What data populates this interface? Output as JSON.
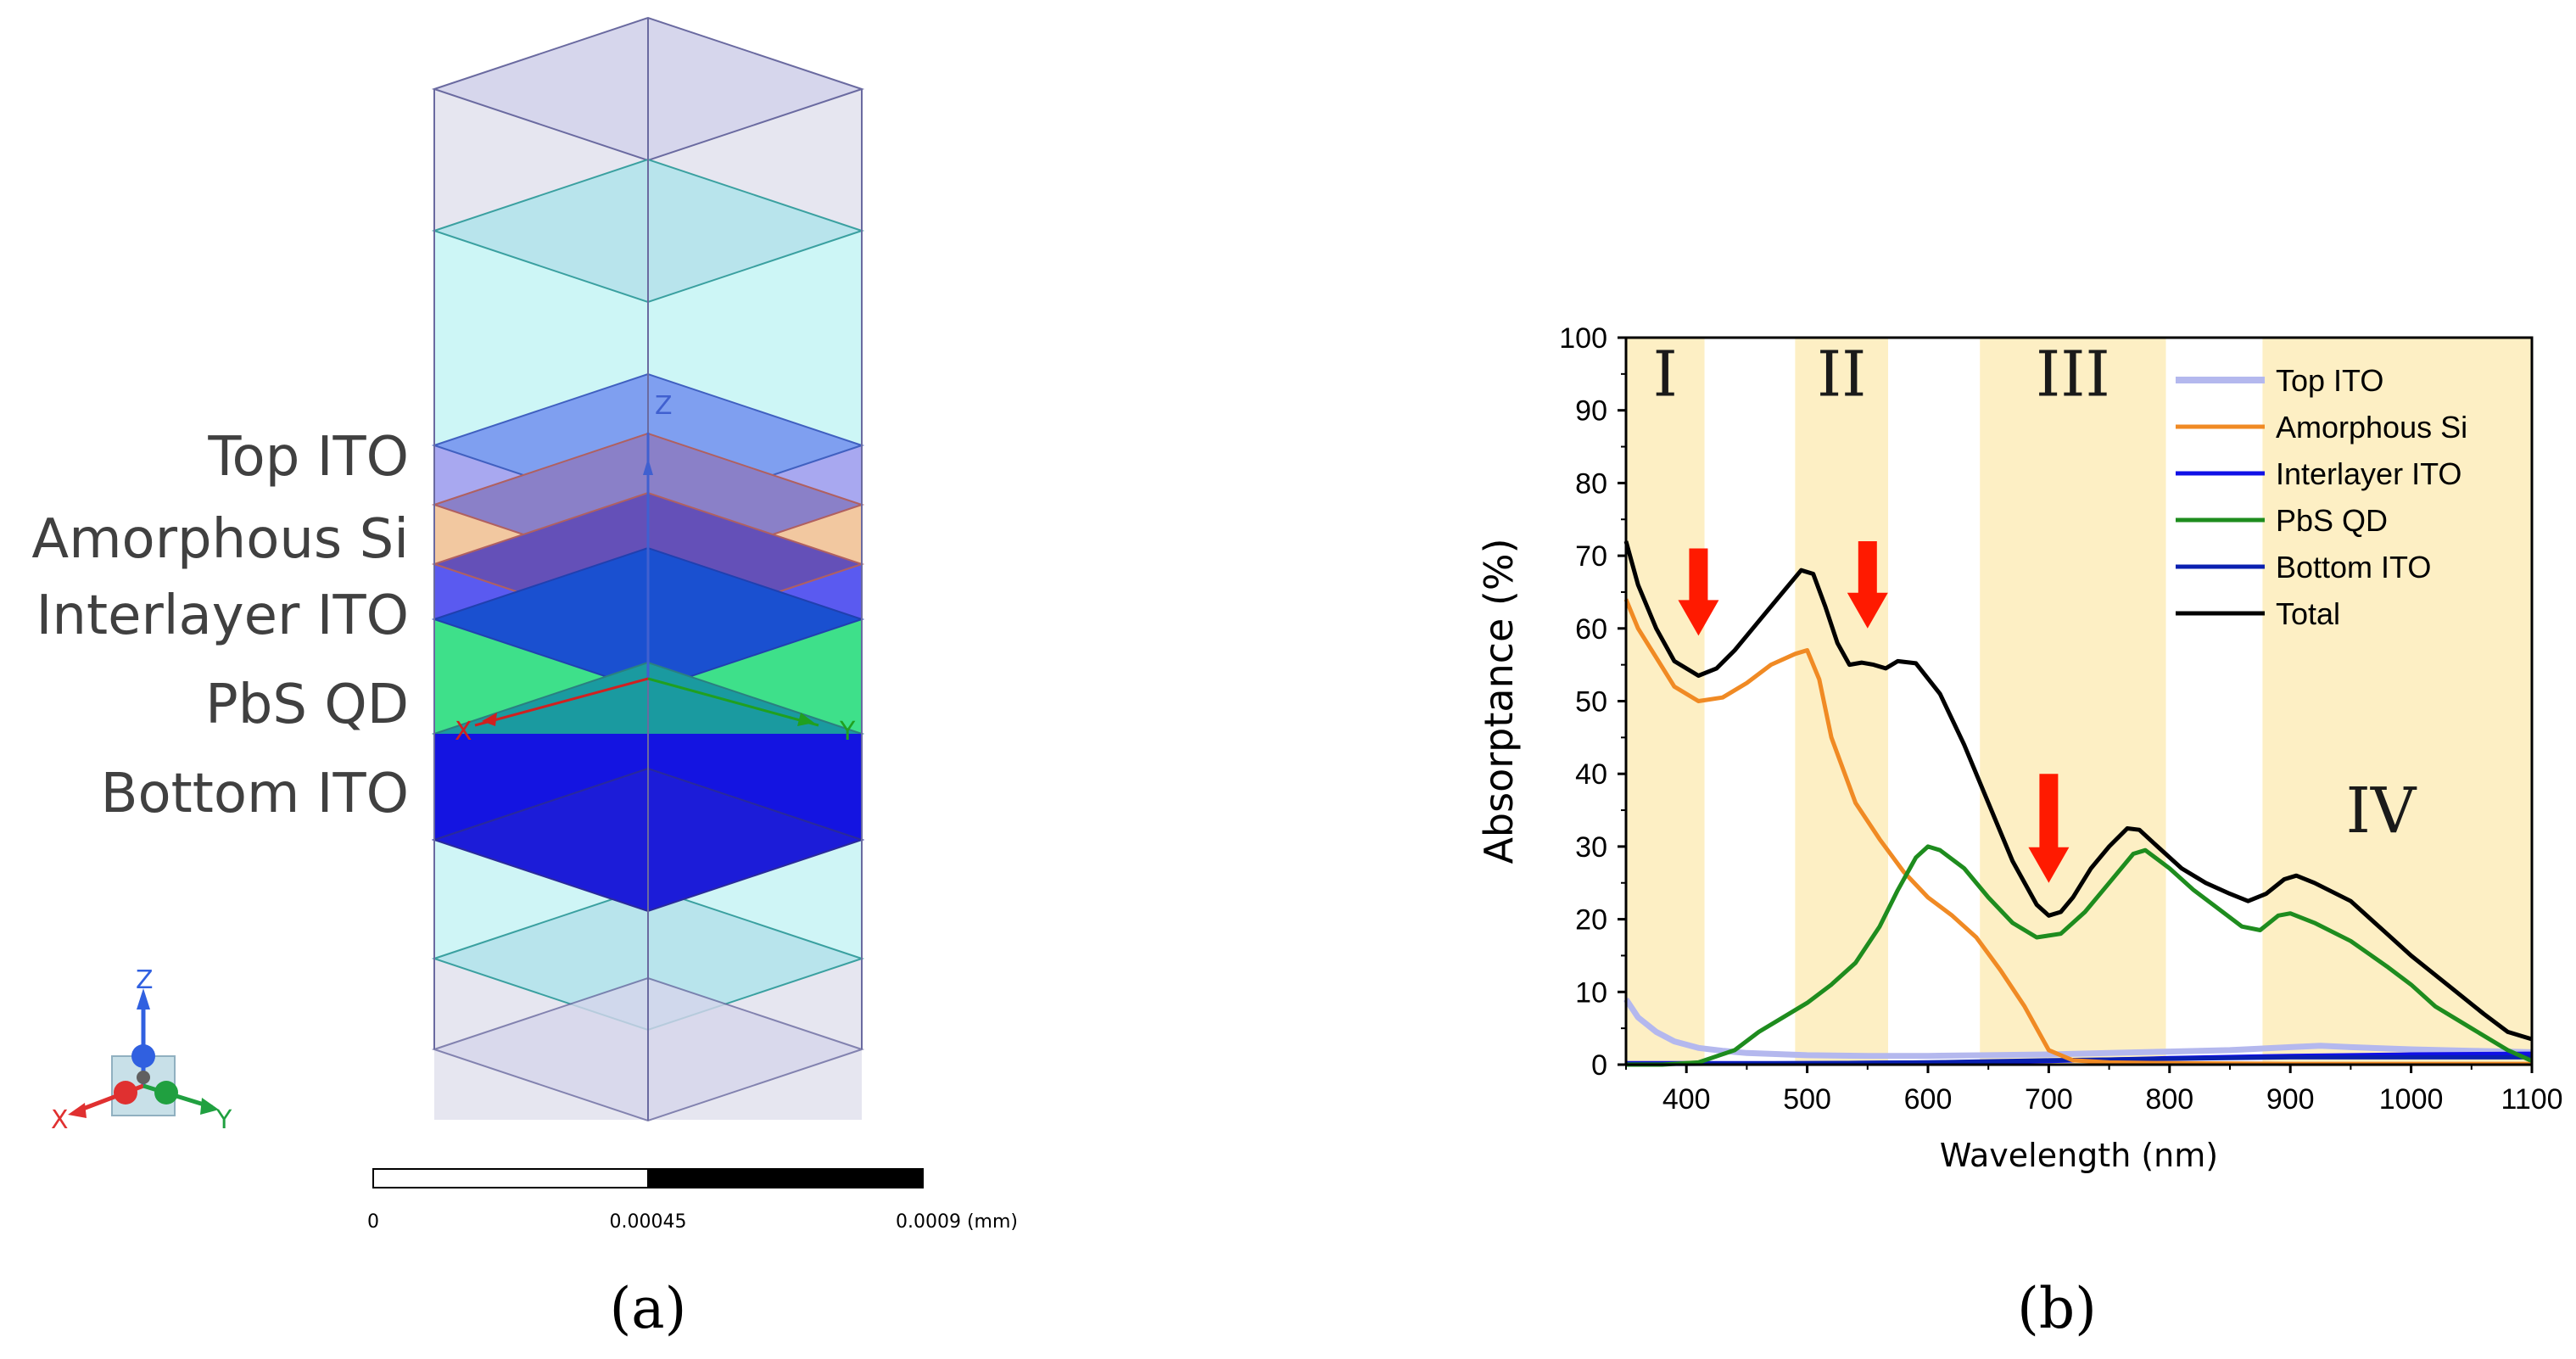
{
  "panel_a": {
    "caption": "(a)",
    "layer_labels": [
      "Top ITO",
      "Amorphous Si",
      "Interlayer ITO",
      "PbS QD",
      "Bottom ITO"
    ],
    "axis_labels": {
      "x": "X",
      "y": "Y",
      "z": "Z"
    },
    "scale_bar": {
      "ticks": [
        "0",
        "0.00045",
        "0.0009 (mm)"
      ]
    },
    "colors": {
      "top_ito": "#a8a8f0",
      "amorphous_si": "#f2c8a0",
      "interlayer_ito": "#5a5af0",
      "pbs_qd": "#3ee08a",
      "bottom_ito": "#1a1ae0",
      "glass": "#cdf6f6",
      "air": "#e6e6f0"
    }
  },
  "panel_b": {
    "caption": "(b)",
    "chart_data": {
      "type": "line",
      "xlabel": "Wavelength (nm)",
      "ylabel": "Absorptance (%)",
      "xlim": [
        350,
        1100
      ],
      "ylim": [
        0,
        100
      ],
      "xticks": [
        "400",
        "500",
        "600",
        "700",
        "800",
        "900",
        "1000",
        "1100"
      ],
      "yticks": [
        "0",
        "10",
        "20",
        "30",
        "40",
        "50",
        "60",
        "70",
        "80",
        "90",
        "100"
      ],
      "bands": [
        {
          "label": "I",
          "from": 350,
          "to": 415
        },
        {
          "label": "II",
          "from": 490,
          "to": 567
        },
        {
          "label": "III",
          "from": 643,
          "to": 797
        },
        {
          "label": "IV",
          "from": 877,
          "to": 1100
        }
      ],
      "band_color": "#fdefc4",
      "arrows": [
        {
          "x": 410,
          "y_top": 71,
          "y_tip": 59
        },
        {
          "x": 550,
          "y_top": 72,
          "y_tip": 60
        },
        {
          "x": 700,
          "y_top": 40,
          "y_tip": 25
        }
      ],
      "series": [
        {
          "name": "Top ITO",
          "color": "#b4b8ee",
          "x": [
            350,
            360,
            375,
            390,
            410,
            430,
            450,
            500,
            550,
            600,
            650,
            700,
            750,
            800,
            850,
            900,
            925,
            950,
            1000,
            1050,
            1100
          ],
          "y": [
            9,
            6.5,
            4.5,
            3.2,
            2.3,
            1.9,
            1.6,
            1.3,
            1.2,
            1.2,
            1.3,
            1.4,
            1.6,
            1.8,
            2.0,
            2.4,
            2.6,
            2.4,
            2.1,
            1.9,
            1.7
          ]
        },
        {
          "name": "Amorphous Si",
          "color": "#f08a24",
          "x": [
            350,
            360,
            375,
            390,
            410,
            430,
            450,
            470,
            490,
            500,
            510,
            520,
            540,
            560,
            580,
            600,
            620,
            640,
            660,
            680,
            700,
            720,
            750,
            800,
            900,
            1000,
            1100
          ],
          "y": [
            64,
            60,
            56,
            52,
            50,
            50.5,
            52.5,
            55,
            56.5,
            57,
            53,
            45,
            36,
            31,
            26.5,
            23,
            20.5,
            17.5,
            13,
            8,
            2,
            0.6,
            0.3,
            0.2,
            0.1,
            0.1,
            0.1
          ]
        },
        {
          "name": "Interlayer ITO",
          "color": "#1010e6",
          "x": [
            350,
            400,
            500,
            600,
            700,
            800,
            900,
            1000,
            1100
          ],
          "y": [
            0.2,
            0.2,
            0.2,
            0.3,
            0.5,
            0.9,
            1.2,
            1.4,
            1.5
          ]
        },
        {
          "name": "PbS QD",
          "color": "#1e8c1e",
          "x": [
            350,
            380,
            410,
            440,
            460,
            480,
            500,
            520,
            540,
            560,
            575,
            590,
            600,
            610,
            630,
            650,
            670,
            690,
            710,
            730,
            750,
            770,
            780,
            800,
            820,
            840,
            860,
            875,
            890,
            900,
            920,
            950,
            980,
            1000,
            1020,
            1050,
            1080,
            1100
          ],
          "y": [
            0,
            0,
            0.3,
            2,
            4.5,
            6.5,
            8.5,
            11,
            14,
            19,
            24,
            28.5,
            30,
            29.5,
            27,
            23,
            19.5,
            17.5,
            18,
            21,
            25,
            29,
            29.5,
            27,
            24,
            21.5,
            19,
            18.5,
            20.5,
            20.8,
            19.5,
            17,
            13.5,
            11,
            8,
            5,
            2,
            0.5
          ]
        },
        {
          "name": "Bottom ITO",
          "color": "#0a20b0",
          "x": [
            350,
            400,
            500,
            600,
            700,
            800,
            900,
            1000,
            1100
          ],
          "y": [
            0.1,
            0.1,
            0.2,
            0.3,
            0.6,
            0.8,
            1.0,
            1.0,
            1.0
          ]
        },
        {
          "name": "Total",
          "color": "#000000",
          "x": [
            350,
            360,
            375,
            390,
            410,
            425,
            440,
            460,
            480,
            495,
            505,
            515,
            525,
            535,
            545,
            555,
            565,
            575,
            590,
            610,
            630,
            650,
            670,
            690,
            700,
            710,
            720,
            735,
            750,
            765,
            775,
            790,
            810,
            830,
            850,
            865,
            880,
            895,
            905,
            920,
            950,
            980,
            1000,
            1030,
            1060,
            1080,
            1100
          ],
          "y": [
            72,
            66,
            60,
            55.5,
            53.5,
            54.5,
            57,
            61,
            65,
            68,
            67.5,
            63,
            58,
            55,
            55.3,
            55,
            54.5,
            55.5,
            55.2,
            51,
            44,
            36,
            28,
            22,
            20.5,
            21,
            23,
            27,
            30,
            32.5,
            32.3,
            30,
            27,
            25,
            23.5,
            22.5,
            23.5,
            25.5,
            26,
            25,
            22.5,
            18,
            15,
            11,
            7,
            4.5,
            3.5
          ]
        }
      ]
    }
  }
}
